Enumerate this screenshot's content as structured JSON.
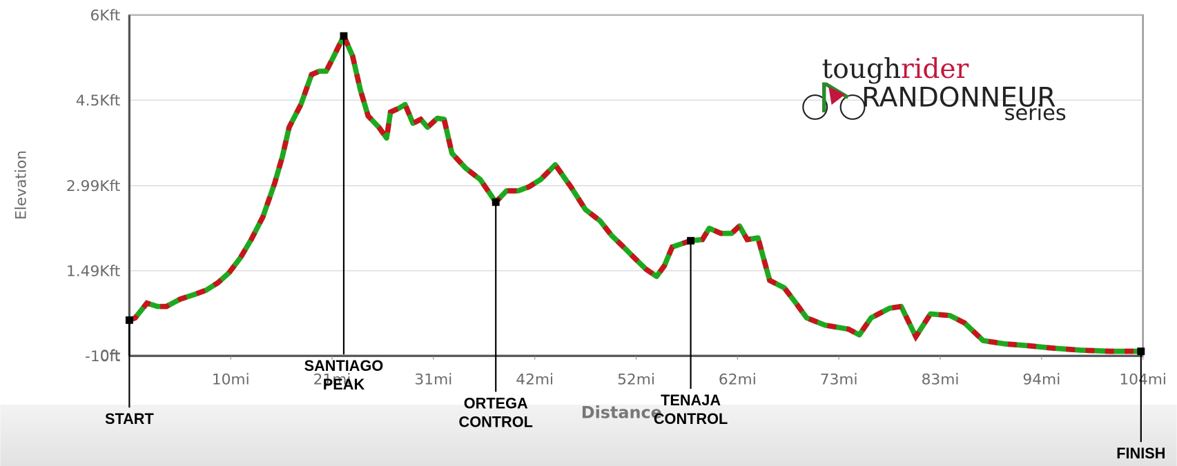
{
  "chart_data": {
    "type": "line",
    "x_label": "Distance",
    "y_label": "Elevation",
    "xlim": [
      0,
      104
    ],
    "ylim": [
      -10,
      6000
    ],
    "xticks": [
      {
        "value": 10.4,
        "label": "10mi"
      },
      {
        "value": 20.8,
        "label": "21mi"
      },
      {
        "value": 31.2,
        "label": "31mi"
      },
      {
        "value": 41.6,
        "label": "42mi"
      },
      {
        "value": 52,
        "label": "52mi"
      },
      {
        "value": 62.4,
        "label": "62mi"
      },
      {
        "value": 72.8,
        "label": "73mi"
      },
      {
        "value": 83.2,
        "label": "83mi"
      },
      {
        "value": 93.6,
        "label": "94mi"
      },
      {
        "value": 104,
        "label": "104mi"
      }
    ],
    "yticks": [
      {
        "value": -10,
        "label": "-10ft"
      },
      {
        "value": 0,
        "label": "0ft"
      },
      {
        "value": 1490,
        "label": "1.49Kft"
      },
      {
        "value": 2990,
        "label": "2.99Kft"
      },
      {
        "value": 4500,
        "label": "4.5Kft"
      },
      {
        "value": 6000,
        "label": "6Kft"
      }
    ],
    "grid": true,
    "x": [
      0,
      0.6,
      1.8,
      2.9,
      3.8,
      5.2,
      6.8,
      7.9,
      9.1,
      10.2,
      11.4,
      12.5,
      13.7,
      14.9,
      15.7,
      16.4,
      17.6,
      18.7,
      19.5,
      20.2,
      21.0,
      22.0,
      22.9,
      23.7,
      24.5,
      25.6,
      26.4,
      26.8,
      27.6,
      28.3,
      29.1,
      29.9,
      30.6,
      31.6,
      32.3,
      33.1,
      34.5,
      36.0,
      37.6,
      38.7,
      39.9,
      41.0,
      42.2,
      43.7,
      45.3,
      46.8,
      48.3,
      49.5,
      50.7,
      51.8,
      53.0,
      54.1,
      54.9,
      55.7,
      57.6,
      58.8,
      59.5,
      60.7,
      61.8,
      62.6,
      63.4,
      64.5,
      65.7,
      67.2,
      68.4,
      69.5,
      71.4,
      73.8,
      74.9,
      76.1,
      78.0,
      79.2,
      80.7,
      82.2,
      84.2,
      85.7,
      87.6,
      89.9,
      92.2,
      94.5,
      97.6,
      100.7,
      104
    ],
    "series": [
      {
        "color": "#1fa81f",
        "dash_color": "#c4161c",
        "values": [
          620,
          660,
          920,
          860,
          860,
          990,
          1080,
          1150,
          1280,
          1450,
          1720,
          2040,
          2440,
          3030,
          3500,
          4020,
          4420,
          4950,
          5010,
          5010,
          5280,
          5630,
          5280,
          4680,
          4220,
          4020,
          3830,
          4290,
          4350,
          4420,
          4090,
          4160,
          4020,
          4180,
          4160,
          3560,
          3300,
          3100,
          2700,
          2900,
          2900,
          2970,
          3100,
          3360,
          2970,
          2570,
          2370,
          2110,
          1910,
          1720,
          1520,
          1390,
          1580,
          1910,
          2020,
          2040,
          2240,
          2150,
          2150,
          2280,
          2040,
          2070,
          1320,
          1190,
          920,
          660,
          530,
          460,
          360,
          660,
          830,
          860,
          330,
          730,
          700,
          570,
          260,
          200,
          170,
          130,
          90,
          70,
          70
        ]
      }
    ],
    "annotations": [
      {
        "lines": [
          "START"
        ],
        "x": 0,
        "y": 620
      },
      {
        "lines": [
          "SANTIAGO",
          "PEAK"
        ],
        "x": 22.0,
        "y": 5630
      },
      {
        "lines": [
          "ORTEGA",
          "CONTROL"
        ],
        "x": 37.6,
        "y": 2700
      },
      {
        "lines": [
          "TENAJA",
          "CONTROL"
        ],
        "x": 57.6,
        "y": 2020
      },
      {
        "lines": [
          "FINISH"
        ],
        "x": 103.8,
        "y": 70
      }
    ],
    "logo": {
      "tough": "tough",
      "rider": "rider",
      "brand": "RANDONNEUR",
      "series": "series"
    }
  }
}
